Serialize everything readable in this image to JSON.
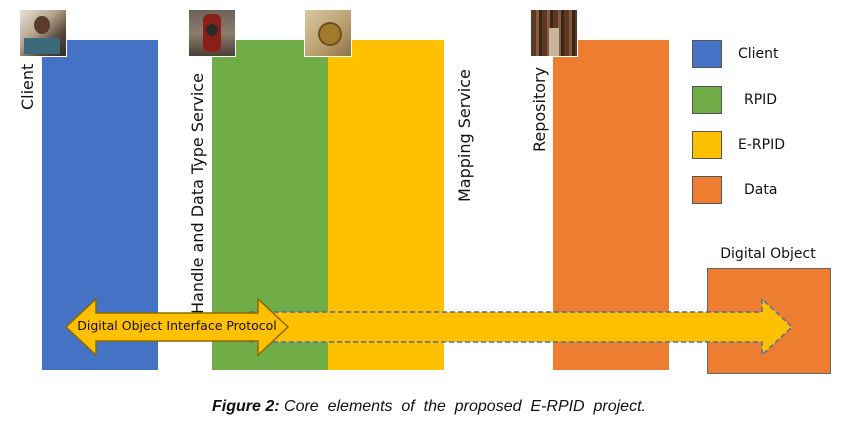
{
  "columns": {
    "client": {
      "label": "Client",
      "color": "#4472C4"
    },
    "handle": {
      "label": "Handle and Data Type Service",
      "color": "#70AD47"
    },
    "mapping": {
      "label": "Mapping Service",
      "color": "#FFC000"
    },
    "repository": {
      "label": "Repository",
      "color": "#ED7D31"
    }
  },
  "legend": [
    {
      "label": "Client",
      "color": "#4472C4"
    },
    {
      "label": "RPID",
      "color": "#70AD47"
    },
    {
      "label": "E-RPID",
      "color": "#FFC000"
    },
    {
      "label": "Data",
      "color": "#ED7D31"
    }
  ],
  "digital_object": {
    "label": "Digital Object",
    "color": "#ED7D31"
  },
  "protocol": {
    "label": "Digital Object Interface Protocol"
  },
  "caption": {
    "prefix": "Figure 2:",
    "text": " Core  elements  of  the  proposed  E-RPID  project."
  },
  "thumbnails": [
    "person-at-laptop-photo",
    "vintage-telephone-photo",
    "compass-map-photo",
    "library-shelves-photo"
  ]
}
